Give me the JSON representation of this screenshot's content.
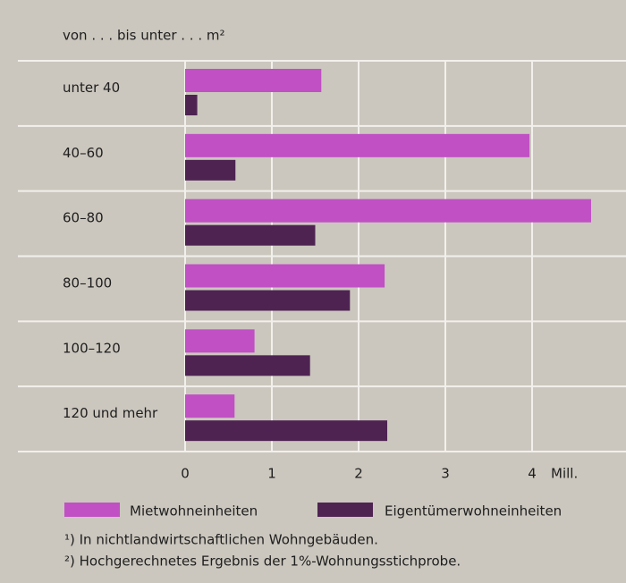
{
  "chart_data": {
    "type": "bar",
    "orientation": "horizontal",
    "title": "von . . . bis unter . . . m²",
    "categories": [
      "unter 40",
      "40–60",
      "60–80",
      "80–100",
      "100–120",
      "120 und mehr"
    ],
    "series": [
      {
        "name": "Mietwohneinheiten",
        "color": "#c050c4",
        "values": [
          1.57,
          3.97,
          4.68,
          2.3,
          0.8,
          0.57
        ]
      },
      {
        "name": "Eigentümerwohneinheiten",
        "color": "#4e2352",
        "values": [
          0.14,
          0.58,
          1.5,
          1.9,
          1.44,
          2.33
        ]
      }
    ],
    "x_label": "Mill.",
    "xlim": [
      0,
      5
    ],
    "xticks": [
      0,
      1,
      2,
      3,
      4
    ],
    "grid": true,
    "footnotes": [
      "¹) In nichtlandwirtschaftlichen Wohngebäuden.",
      "²) Hochgerechnetes Ergebnis der 1%-Wohnungsstichprobe."
    ]
  }
}
